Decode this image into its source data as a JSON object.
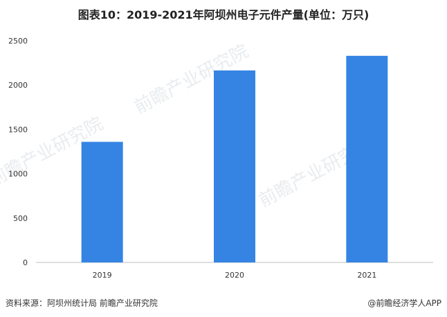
{
  "chart_data": {
    "type": "bar",
    "title": "图表10：2019-2021年阿坝州电子元件产量(单位：万只)",
    "categories": [
      "2019",
      "2020",
      "2021"
    ],
    "values": [
      1360,
      2165,
      2330
    ],
    "ylim": [
      0,
      2500
    ],
    "yticks": [
      0,
      500,
      1000,
      1500,
      2000,
      2500
    ],
    "xlabel": "",
    "ylabel": "",
    "bar_color": "#3584e4",
    "grid": false,
    "legend": "none"
  },
  "footer": {
    "source": "资料来源：阿坝州统计局 前瞻产业研究院",
    "brand": "@前瞻经济学人APP"
  },
  "watermark": {
    "text": "前瞻产业研究院"
  }
}
